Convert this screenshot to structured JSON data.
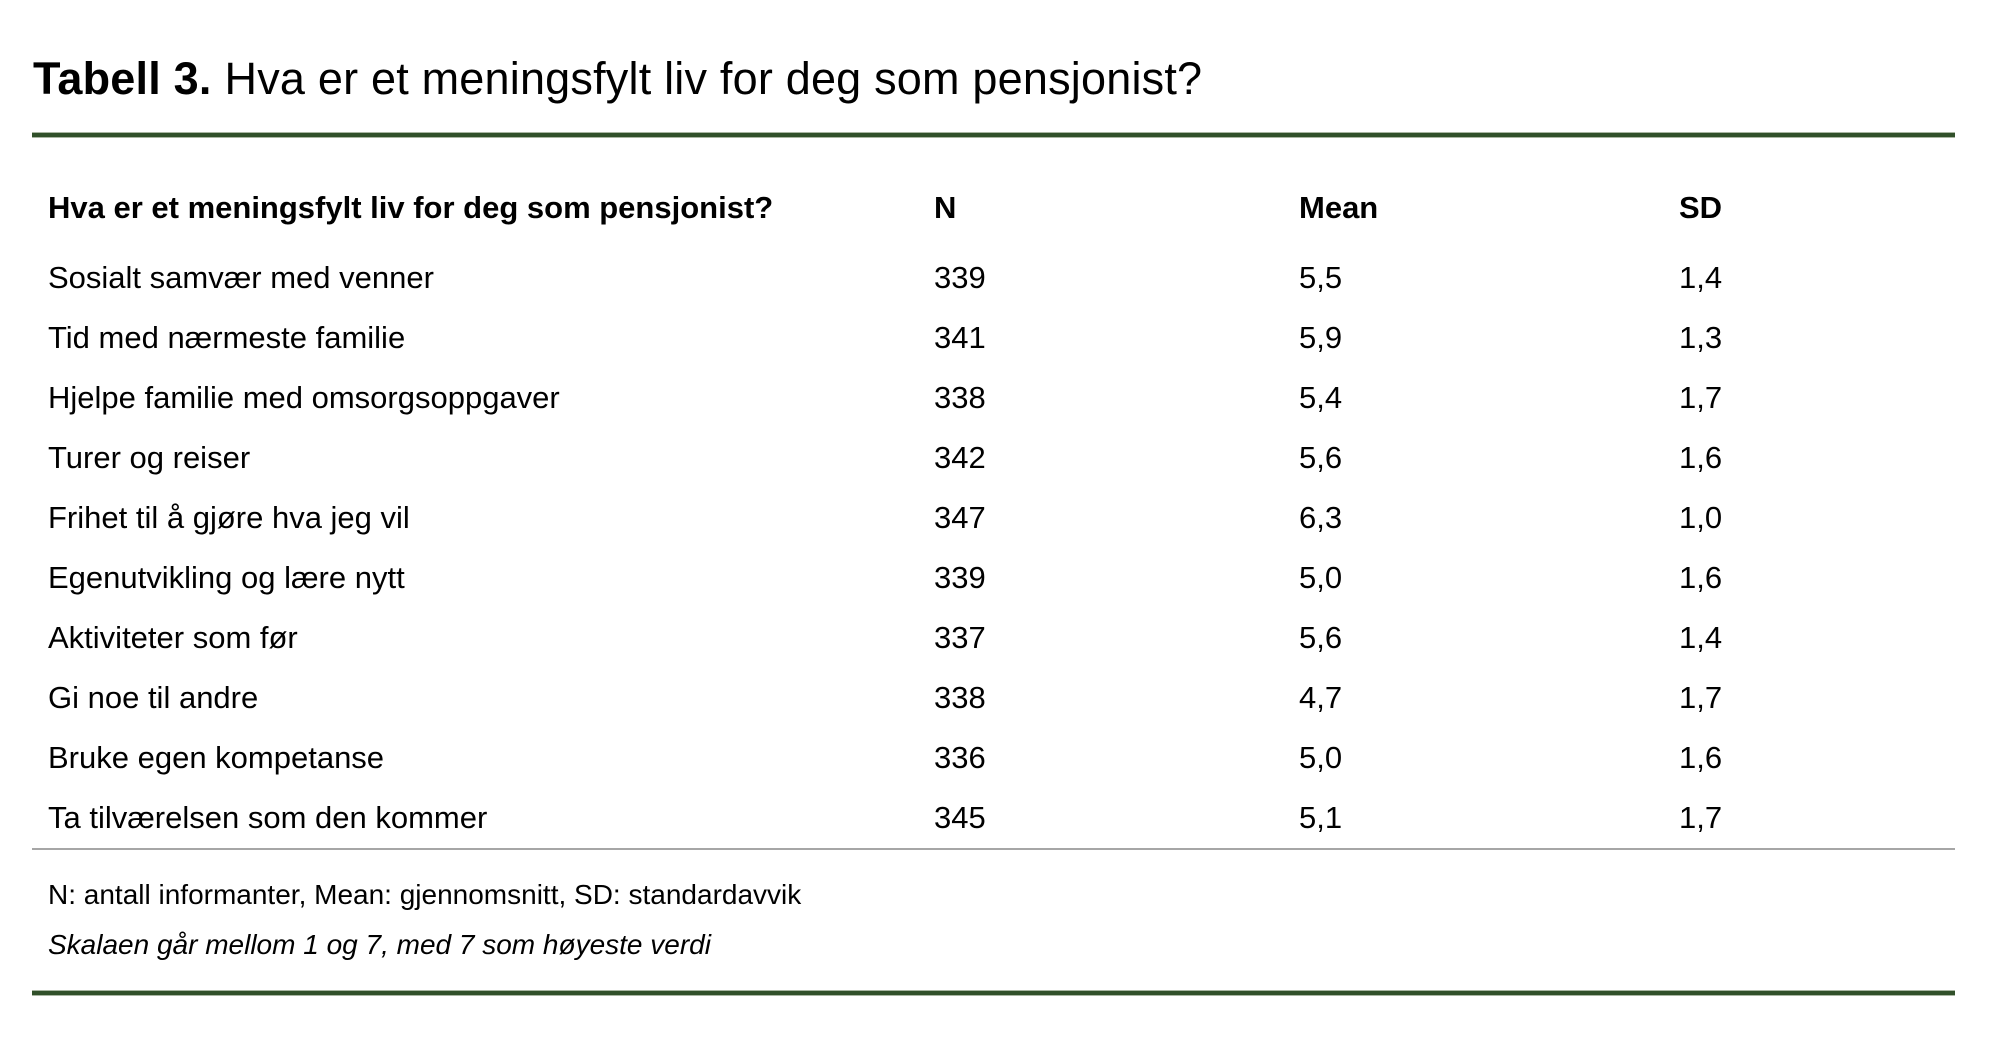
{
  "title": {
    "prefix": "Tabell 3.",
    "text": "Hva er et meningsfylt liv for deg som pensjonist?"
  },
  "table": {
    "columns": {
      "question": "Hva er et meningsfylt liv for deg som pensjonist?",
      "n": "N",
      "mean": "Mean",
      "sd": "SD"
    },
    "rows": [
      {
        "label": "Sosialt samvær med venner",
        "n": "339",
        "mean": "5,5",
        "sd": "1,4"
      },
      {
        "label": "Tid med nærmeste familie",
        "n": "341",
        "mean": "5,9",
        "sd": "1,3"
      },
      {
        "label": "Hjelpe familie med omsorgsoppgaver",
        "n": "338",
        "mean": "5,4",
        "sd": "1,7"
      },
      {
        "label": "Turer og reiser",
        "n": "342",
        "mean": "5,6",
        "sd": "1,6"
      },
      {
        "label": "Frihet til å gjøre hva jeg vil",
        "n": "347",
        "mean": "6,3",
        "sd": "1,0"
      },
      {
        "label": "Egenutvikling og lære nytt",
        "n": "339",
        "mean": "5,0",
        "sd": "1,6"
      },
      {
        "label": "Aktiviteter som før",
        "n": "337",
        "mean": "5,6",
        "sd": "1,4"
      },
      {
        "label": "Gi noe til andre",
        "n": "338",
        "mean": "4,7",
        "sd": "1,7"
      },
      {
        "label": "Bruke egen kompetanse",
        "n": "336",
        "mean": "5,0",
        "sd": "1,6"
      },
      {
        "label": "Ta tilværelsen som den kommer",
        "n": "345",
        "mean": "5,1",
        "sd": "1,7"
      }
    ]
  },
  "footnotes": {
    "abbreviations": "N: antall informanter, Mean: gjennomsnitt, SD: standardavvik",
    "scale": "Skalaen går mellom 1 og 7, med 7 som høyeste verdi"
  },
  "colors": {
    "rule_green": "#31502a",
    "rule_gray": "#a6a6a6",
    "text": "#000000",
    "background": "#ffffff"
  }
}
